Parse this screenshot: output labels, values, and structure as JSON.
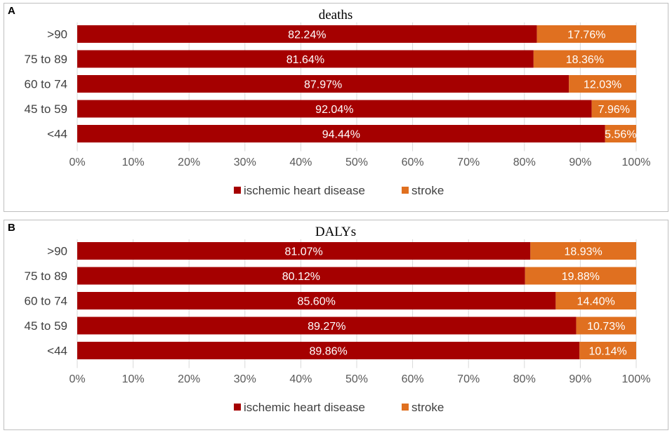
{
  "panels": [
    {
      "letter": "A",
      "chart_data": {
        "type": "bar",
        "orientation": "horizontal",
        "stacked": "percent",
        "title": "deaths",
        "categories": [
          ">90",
          "75 to 89",
          "60 to 74",
          "45 to 59",
          "<44"
        ],
        "series": [
          {
            "name": "ischemic heart disease",
            "color": "#a50000",
            "values": [
              82.24,
              81.64,
              87.97,
              92.04,
              94.44
            ],
            "labels": [
              "82.24%",
              "81.64%",
              "87.97%",
              "92.04%",
              "94.44%"
            ]
          },
          {
            "name": "stroke",
            "color": "#e07020",
            "values": [
              17.76,
              18.36,
              12.03,
              7.96,
              5.56
            ],
            "labels": [
              "17.76%",
              "18.36%",
              "12.03%",
              "7.96%",
              "5.56%"
            ]
          }
        ],
        "xticks": [
          "0%",
          "10%",
          "20%",
          "30%",
          "40%",
          "50%",
          "60%",
          "70%",
          "80%",
          "90%",
          "100%"
        ],
        "xlim": [
          0,
          100
        ],
        "legend": "bottom",
        "grid": true
      }
    },
    {
      "letter": "B",
      "chart_data": {
        "type": "bar",
        "orientation": "horizontal",
        "stacked": "percent",
        "title": "DALYs",
        "categories": [
          ">90",
          "75 to 89",
          "60 to 74",
          "45 to 59",
          "<44"
        ],
        "series": [
          {
            "name": "ischemic heart disease",
            "color": "#a50000",
            "values": [
              81.07,
              80.12,
              85.6,
              89.27,
              89.86
            ],
            "labels": [
              "81.07%",
              "80.12%",
              "85.60%",
              "89.27%",
              "89.86%"
            ]
          },
          {
            "name": "stroke",
            "color": "#e07020",
            "values": [
              18.93,
              19.88,
              14.4,
              10.73,
              10.14
            ],
            "labels": [
              "18.93%",
              "19.88%",
              "14.40%",
              "10.73%",
              "10.14%"
            ]
          }
        ],
        "xticks": [
          "0%",
          "10%",
          "20%",
          "30%",
          "40%",
          "50%",
          "60%",
          "70%",
          "80%",
          "90%",
          "100%"
        ],
        "xlim": [
          0,
          100
        ],
        "legend": "bottom",
        "grid": true
      }
    }
  ]
}
